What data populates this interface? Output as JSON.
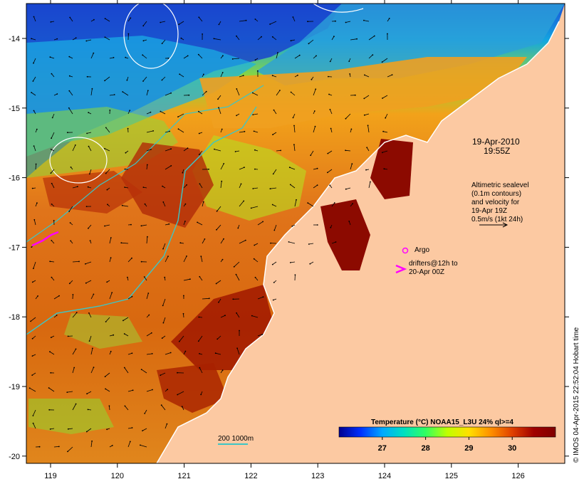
{
  "map": {
    "lon_ticks": [
      "119",
      "120",
      "121",
      "122",
      "123",
      "124",
      "125",
      "126"
    ],
    "lat_ticks": [
      "-14",
      "-15",
      "-16",
      "-17",
      "-18",
      "-19",
      "-20"
    ],
    "colors": {
      "land": "#fcc9a2",
      "coast": "#ffffff",
      "contour": "#ffffff",
      "isobath": "#3cc6c6",
      "argo": "#ff00ff",
      "drifter": "#ff00ff",
      "arrow": "#000000"
    }
  },
  "annotations": {
    "date": "19-Apr-2010",
    "time": "19:55Z",
    "legend_lines": [
      "Altimetric sealevel",
      "(0.1m contours)",
      "and velocity for",
      "19-Apr 19Z",
      "0.5m/s (1kt 24h)"
    ],
    "argo_label": "Argo",
    "drifters_lines": [
      "drifters@12h to",
      "20-Apr 00Z"
    ],
    "isobath_label": "200 1000m"
  },
  "colorbar": {
    "title": "Temperature (°C) NOAA15_L3U 24% ql>=4",
    "ticks": [
      "27",
      "28",
      "29",
      "30"
    ],
    "tick_values": [
      27,
      28,
      29,
      30
    ],
    "range": [
      26.0,
      31.0
    ],
    "stops": [
      "#000090",
      "#0030ff",
      "#00a8ff",
      "#00e0c0",
      "#30ff60",
      "#c0ff00",
      "#ffe000",
      "#ff9000",
      "#e04000",
      "#a00000",
      "#800000"
    ]
  },
  "copyright": "© IMOS 04-Apr-2015 22:52:04 Hobart time"
}
